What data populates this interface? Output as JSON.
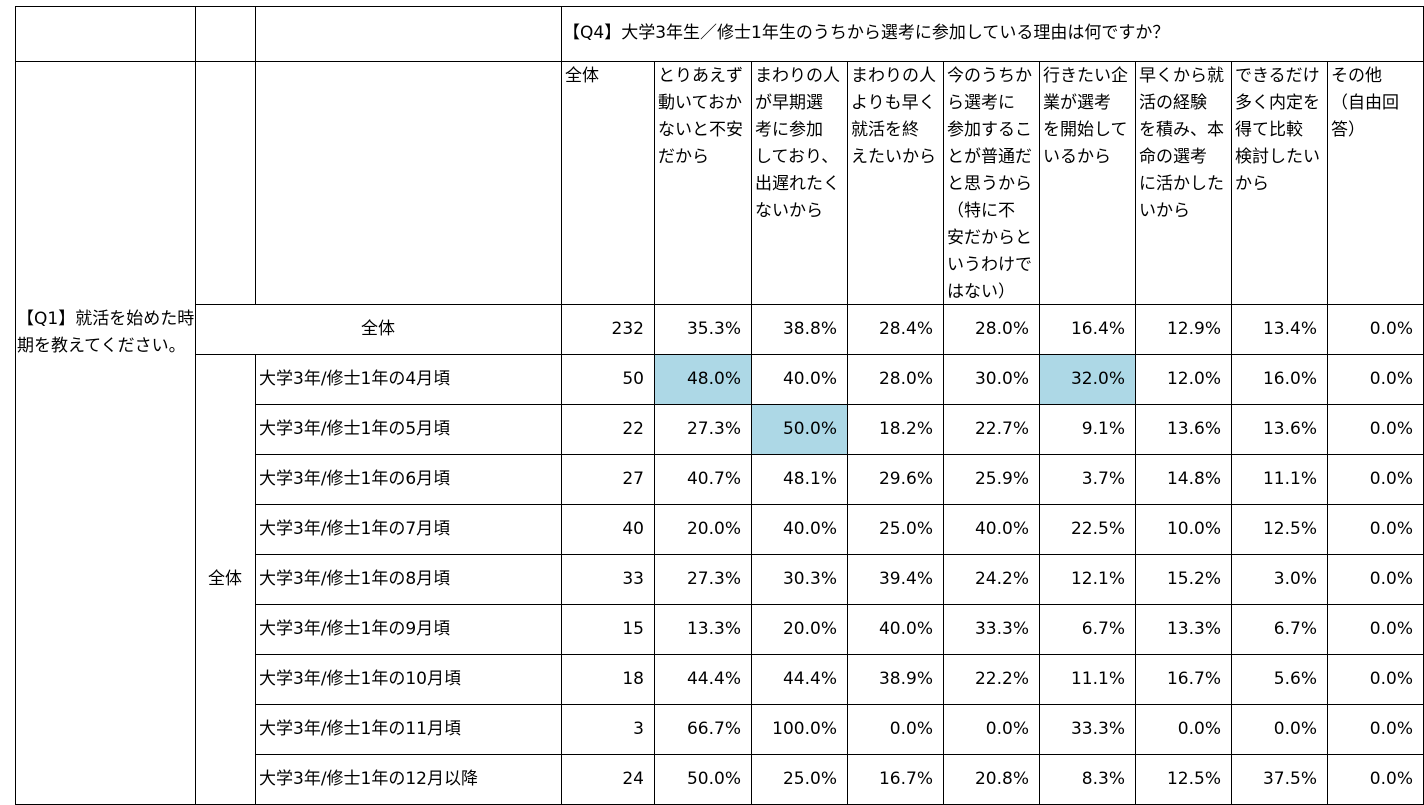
{
  "question": "【Q4】大学3年生／修士1年生のうちから選考に参加している理由は何ですか？",
  "row_question": "【Q1】就活を始めた時期を教えてください。",
  "group_label": "全体",
  "columns": [
    [
      "全体"
    ],
    [
      "とりあえず",
      "動いておか",
      "ないと不安",
      "だから"
    ],
    [
      "まわりの人",
      "が早期選",
      "考に参加",
      "しており、",
      "出遅れたく",
      "ないから"
    ],
    [
      "まわりの人",
      "よりも早く",
      "就活を終",
      "えたいから"
    ],
    [
      "今のうちか",
      "ら選考に",
      "参加するこ",
      "とが普通だ",
      "と思うから",
      "（特に不",
      "安だからと",
      "いうわけで",
      "はない）"
    ],
    [
      "行きたい企",
      "業が選考",
      "を開始して",
      "いるから"
    ],
    [
      "早くから就",
      "活の経験",
      "を積み、本",
      "命の選考",
      "に活かした",
      "いから"
    ],
    [
      "できるだけ",
      "多く内定を",
      "得て比較",
      "検討したい",
      "から"
    ],
    [
      "その他",
      "（自由回",
      "答）"
    ]
  ],
  "total_row": {
    "label": "全体",
    "values": [
      "232",
      "35.3%",
      "38.8%",
      "28.4%",
      "28.0%",
      "16.4%",
      "12.9%",
      "13.4%",
      "0.0%"
    ]
  },
  "rows": [
    {
      "label": "大学3年/修士1年の4月頃",
      "values": [
        "50",
        "48.0%",
        "40.0%",
        "28.0%",
        "30.0%",
        "32.0%",
        "12.0%",
        "16.0%",
        "0.0%"
      ]
    },
    {
      "label": "大学3年/修士1年の5月頃",
      "values": [
        "22",
        "27.3%",
        "50.0%",
        "18.2%",
        "22.7%",
        "9.1%",
        "13.6%",
        "13.6%",
        "0.0%"
      ]
    },
    {
      "label": "大学3年/修士1年の6月頃",
      "values": [
        "27",
        "40.7%",
        "48.1%",
        "29.6%",
        "25.9%",
        "3.7%",
        "14.8%",
        "11.1%",
        "0.0%"
      ]
    },
    {
      "label": "大学3年/修士1年の7月頃",
      "values": [
        "40",
        "20.0%",
        "40.0%",
        "25.0%",
        "40.0%",
        "22.5%",
        "10.0%",
        "12.5%",
        "0.0%"
      ]
    },
    {
      "label": "大学3年/修士1年の8月頃",
      "values": [
        "33",
        "27.3%",
        "30.3%",
        "39.4%",
        "24.2%",
        "12.1%",
        "15.2%",
        "3.0%",
        "0.0%"
      ]
    },
    {
      "label": "大学3年/修士1年の9月頃",
      "values": [
        "15",
        "13.3%",
        "20.0%",
        "40.0%",
        "33.3%",
        "6.7%",
        "13.3%",
        "6.7%",
        "0.0%"
      ]
    },
    {
      "label": "大学3年/修士1年の10月頃",
      "values": [
        "18",
        "44.4%",
        "44.4%",
        "38.9%",
        "22.2%",
        "11.1%",
        "16.7%",
        "5.6%",
        "0.0%"
      ]
    },
    {
      "label": "大学3年/修士1年の11月頃",
      "values": [
        "3",
        "66.7%",
        "100.0%",
        "0.0%",
        "0.0%",
        "33.3%",
        "0.0%",
        "0.0%",
        "0.0%"
      ]
    },
    {
      "label": "大学3年/修士1年の12月以降",
      "values": [
        "24",
        "50.0%",
        "25.0%",
        "16.7%",
        "20.8%",
        "8.3%",
        "12.5%",
        "37.5%",
        "0.0%"
      ]
    }
  ],
  "highlights": [
    [
      0,
      1
    ],
    [
      0,
      5
    ],
    [
      1,
      2
    ]
  ],
  "highlight_color": "#add8e6"
}
